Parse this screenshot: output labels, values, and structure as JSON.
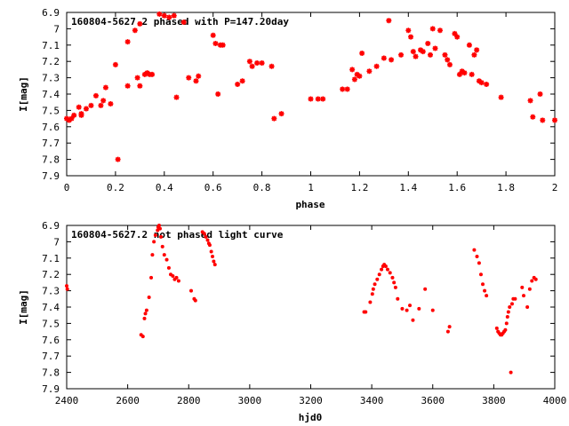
{
  "chart_data": [
    {
      "type": "scatter",
      "title": "160804-5627.2 phased with P=147.20day",
      "xlabel": "phase",
      "ylabel": "I[mag]",
      "xlim": [
        0,
        2
      ],
      "ylim": [
        6.9,
        7.9
      ],
      "y_inverted": true,
      "xticks": [
        0,
        0.2,
        0.4,
        0.6,
        0.8,
        1,
        1.2,
        1.4,
        1.6,
        1.8,
        2
      ],
      "yticks": [
        6.9,
        7,
        7.1,
        7.2,
        7.3,
        7.4,
        7.5,
        7.6,
        7.7,
        7.8,
        7.9
      ],
      "xtick_labels": [
        "0",
        "0.2",
        "0.4",
        "0.6",
        "0.8",
        "1",
        "1.2",
        "1.4",
        "1.6",
        "1.8",
        "2"
      ],
      "ytick_labels": [
        "6.9",
        "7",
        "7.1",
        "7.2",
        "7.3",
        "7.4",
        "7.5",
        "7.6",
        "7.7",
        "7.8",
        "7.9"
      ],
      "grid": false,
      "marker_color": "#ff0000",
      "marker": "star",
      "x": [
        0.0,
        0.01,
        0.02,
        0.03,
        0.05,
        0.06,
        0.06,
        0.08,
        0.1,
        0.12,
        0.14,
        0.15,
        0.16,
        0.18,
        0.2,
        0.21,
        0.25,
        0.25,
        0.28,
        0.29,
        0.3,
        0.3,
        0.32,
        0.33,
        0.34,
        0.35,
        0.38,
        0.4,
        0.42,
        0.44,
        0.45,
        0.48,
        0.5,
        0.53,
        0.54,
        0.6,
        0.61,
        0.62,
        0.63,
        0.64,
        0.7,
        0.72,
        0.75,
        0.76,
        0.78,
        0.8,
        0.84,
        0.85,
        0.88,
        1.0,
        1.03,
        1.05,
        1.13,
        1.15,
        1.17,
        1.18,
        1.19,
        1.2,
        1.21,
        1.24,
        1.27,
        1.3,
        1.32,
        1.33,
        1.37,
        1.4,
        1.41,
        1.42,
        1.43,
        1.45,
        1.46,
        1.48,
        1.49,
        1.5,
        1.51,
        1.53,
        1.55,
        1.56,
        1.57,
        1.59,
        1.6,
        1.61,
        1.62,
        1.63,
        1.65,
        1.66,
        1.67,
        1.68,
        1.69,
        1.7,
        1.72,
        1.78,
        1.9,
        1.91,
        1.94,
        1.95,
        2.0
      ],
      "y": [
        7.55,
        7.56,
        7.55,
        7.53,
        7.48,
        7.52,
        7.53,
        7.49,
        7.47,
        7.41,
        7.47,
        7.44,
        7.36,
        7.46,
        7.22,
        7.8,
        7.08,
        7.35,
        7.01,
        7.3,
        7.35,
        6.97,
        7.28,
        7.27,
        7.28,
        7.28,
        6.91,
        6.92,
        6.93,
        6.92,
        7.42,
        6.96,
        7.3,
        7.32,
        7.29,
        7.04,
        7.09,
        7.4,
        7.1,
        7.1,
        7.34,
        7.32,
        7.2,
        7.23,
        7.21,
        7.21,
        7.23,
        7.55,
        7.52,
        7.43,
        7.43,
        7.43,
        7.37,
        7.37,
        7.25,
        7.31,
        7.28,
        7.29,
        7.15,
        7.26,
        7.23,
        7.18,
        6.95,
        7.19,
        7.16,
        7.01,
        7.05,
        7.14,
        7.17,
        7.13,
        7.14,
        7.09,
        7.16,
        7.0,
        7.12,
        7.01,
        7.16,
        7.19,
        7.22,
        7.03,
        7.05,
        7.28,
        7.26,
        7.27,
        7.1,
        7.28,
        7.16,
        7.13,
        7.32,
        7.33,
        7.34,
        7.42,
        7.44,
        7.54,
        7.4,
        7.56,
        7.56
      ]
    },
    {
      "type": "scatter",
      "title": "160804-5627.2 not phased light curve",
      "xlabel": "hjd0",
      "ylabel": "I[mag]",
      "xlim": [
        2400,
        4000
      ],
      "ylim": [
        6.9,
        7.9
      ],
      "y_inverted": true,
      "xticks": [
        2400,
        2600,
        2800,
        3000,
        3200,
        3400,
        3600,
        3800,
        4000
      ],
      "yticks": [
        6.9,
        7,
        7.1,
        7.2,
        7.3,
        7.4,
        7.5,
        7.6,
        7.7,
        7.8,
        7.9
      ],
      "xtick_labels": [
        "2400",
        "2600",
        "2800",
        "3000",
        "3200",
        "3400",
        "3600",
        "3800",
        "4000"
      ],
      "ytick_labels": [
        "6.9",
        "7",
        "7.1",
        "7.2",
        "7.3",
        "7.4",
        "7.5",
        "7.6",
        "7.7",
        "7.8",
        "7.9"
      ],
      "grid": false,
      "marker_color": "#ff0000",
      "marker": "dot",
      "x": [
        2400,
        2402,
        2644,
        2650,
        2655,
        2658,
        2662,
        2670,
        2677,
        2681,
        2686,
        2691,
        2698,
        2700,
        2703,
        2706,
        2709,
        2714,
        2720,
        2728,
        2735,
        2741,
        2748,
        2754,
        2760,
        2767,
        2808,
        2818,
        2822,
        2845,
        2851,
        2856,
        2862,
        2866,
        2869,
        2874,
        2878,
        2882,
        2886,
        3375,
        3380,
        3395,
        3402,
        3405,
        3410,
        3418,
        3425,
        3432,
        3437,
        3441,
        3446,
        3452,
        3460,
        3468,
        3473,
        3478,
        3485,
        3500,
        3515,
        3525,
        3535,
        3555,
        3575,
        3600,
        3650,
        3655,
        3736,
        3745,
        3752,
        3758,
        3764,
        3770,
        3776,
        3810,
        3814,
        3818,
        3822,
        3826,
        3830,
        3834,
        3838,
        3842,
        3845,
        3848,
        3852,
        3856,
        3860,
        3864,
        3870,
        3893,
        3898,
        3910,
        3918,
        3925,
        3932,
        3938
      ],
      "y": [
        7.27,
        7.29,
        7.57,
        7.58,
        7.47,
        7.44,
        7.42,
        7.34,
        7.22,
        7.08,
        7.0,
        6.96,
        6.93,
        6.91,
        6.9,
        6.92,
        6.97,
        7.03,
        7.08,
        7.11,
        7.16,
        7.2,
        7.21,
        7.23,
        7.22,
        7.24,
        7.3,
        7.35,
        7.36,
        6.94,
        6.95,
        6.97,
        6.99,
        7.01,
        7.02,
        7.06,
        7.09,
        7.12,
        7.14,
        7.43,
        7.43,
        7.37,
        7.32,
        7.29,
        7.26,
        7.23,
        7.2,
        7.17,
        7.15,
        7.14,
        7.15,
        7.17,
        7.19,
        7.22,
        7.25,
        7.28,
        7.35,
        7.41,
        7.42,
        7.39,
        7.48,
        7.41,
        7.29,
        7.42,
        7.55,
        7.52,
        7.05,
        7.09,
        7.13,
        7.2,
        7.26,
        7.3,
        7.33,
        7.53,
        7.55,
        7.56,
        7.57,
        7.57,
        7.56,
        7.55,
        7.54,
        7.5,
        7.46,
        7.43,
        7.4,
        7.8,
        7.38,
        7.35,
        7.35,
        7.28,
        7.33,
        7.4,
        7.29,
        7.24,
        7.22,
        7.23
      ]
    }
  ]
}
